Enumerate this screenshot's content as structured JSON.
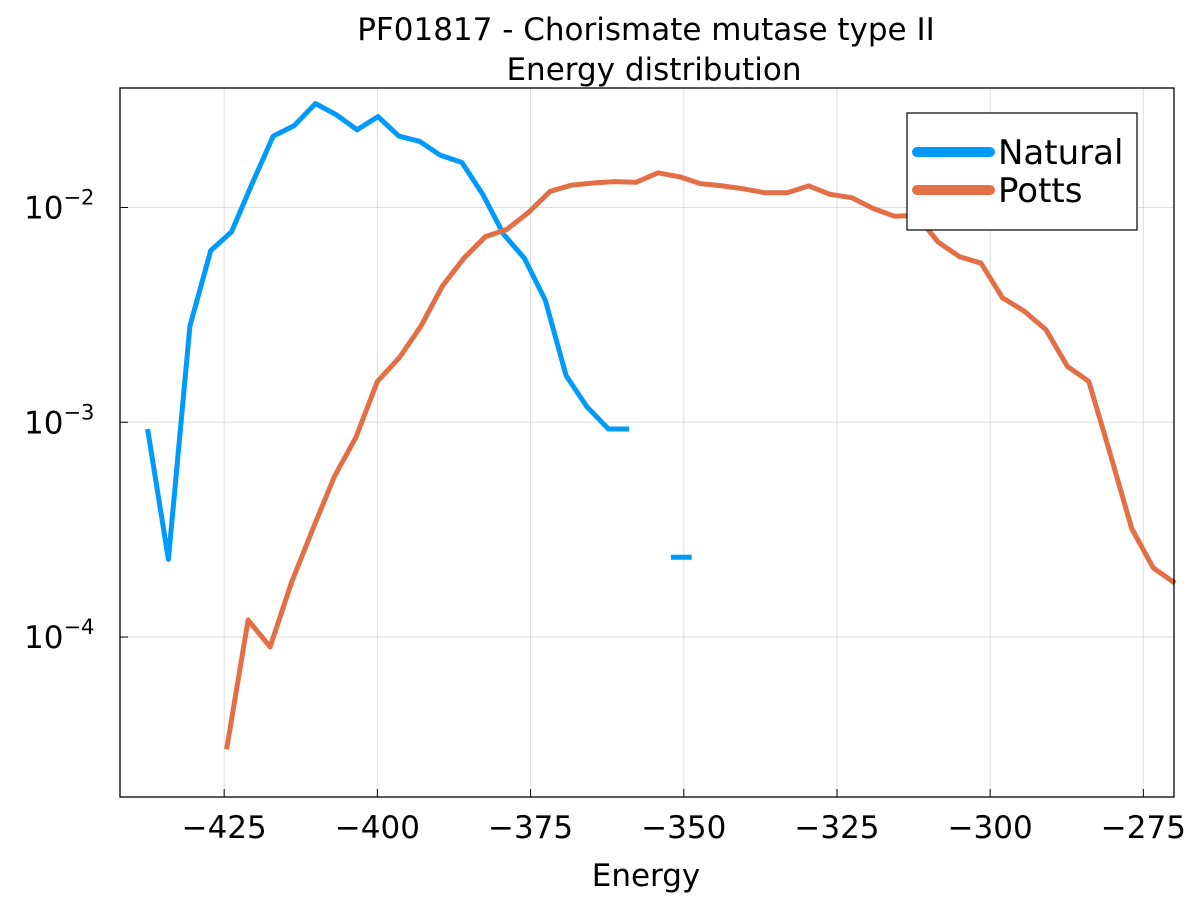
{
  "chart_data": {
    "type": "line",
    "title": [
      "PF01817 - Chorismate mutase type II",
      "Energy distribution"
    ],
    "xlabel": "Energy",
    "ylabel": "",
    "yscale": "log10",
    "xlim": [
      -442,
      -270
    ],
    "ylim": [
      1.8e-05,
      0.036
    ],
    "xticks": [
      -425,
      -400,
      -375,
      -350,
      -325,
      -300,
      -275
    ],
    "xtick_labels": [
      "−425",
      "−400",
      "−375",
      "−350",
      "−325",
      "−300",
      "−275"
    ],
    "yticks": [
      0.0001,
      0.001,
      0.01
    ],
    "ytick_labels": [
      {
        "base": "10",
        "exp": "−4"
      },
      {
        "base": "10",
        "exp": "−3"
      },
      {
        "base": "10",
        "exp": "−2"
      }
    ],
    "grid": true,
    "legend_position": "top-right",
    "series": [
      {
        "name": "Natural",
        "color": "#009AFA",
        "segments": [
          {
            "x": [
              -437.5,
              -434.1,
              -430.6,
              -427.2,
              -423.8,
              -420.4,
              -417.0,
              -413.6,
              -410.1,
              -406.7,
              -403.3,
              -399.9,
              -396.5,
              -393.1,
              -389.7,
              -386.2,
              -382.8,
              -379.4,
              -376.0,
              -372.6,
              -369.2,
              -365.8,
              -362.3,
              -358.9
            ],
            "y": [
              0.00093,
              0.00023,
              0.0028,
              0.0063,
              0.0077,
              0.013,
              0.0215,
              0.024,
              0.0305,
              0.027,
              0.023,
              0.0265,
              0.0215,
              0.0203,
              0.0175,
              0.0162,
              0.0115,
              0.0075,
              0.0058,
              0.0037,
              0.00165,
              0.00118,
              0.00093,
              0.00093
            ]
          },
          {
            "x": [
              -352.1,
              -348.7
            ],
            "y": [
              0.000235,
              0.000235
            ]
          }
        ]
      },
      {
        "name": "Potts",
        "color": "#E26F46",
        "segments": [
          {
            "x": [
              -424.6,
              -421.1,
              -417.5,
              -414.0,
              -410.5,
              -407.0,
              -403.5,
              -400.0,
              -396.4,
              -392.9,
              -389.4,
              -385.9,
              -382.4,
              -378.9,
              -375.3,
              -371.8,
              -368.3,
              -364.8,
              -361.3,
              -357.8,
              -354.2,
              -350.7,
              -347.2,
              -343.7,
              -340.2,
              -336.7,
              -333.1,
              -329.6,
              -326.1,
              -322.6,
              -319.1,
              -315.6,
              -312.0,
              -308.5,
              -305.0,
              -301.5,
              -298.0,
              -294.5,
              -290.9,
              -287.4,
              -283.9,
              -280.4,
              -276.9,
              -273.4,
              -269.8
            ],
            "y": [
              3e-05,
              0.00012,
              9e-05,
              0.00018,
              0.00032,
              0.00056,
              0.00085,
              0.00155,
              0.002,
              0.0028,
              0.0043,
              0.0058,
              0.0073,
              0.0079,
              0.0095,
              0.0119,
              0.0127,
              0.013,
              0.0132,
              0.0131,
              0.0145,
              0.0139,
              0.0129,
              0.0126,
              0.0122,
              0.0117,
              0.0117,
              0.0126,
              0.0115,
              0.0111,
              0.0099,
              0.0091,
              0.0092,
              0.0069,
              0.0059,
              0.0055,
              0.0038,
              0.0033,
              0.0027,
              0.00182,
              0.00155,
              0.00071,
              0.00032,
              0.00021,
              0.000178
            ]
          }
        ]
      }
    ]
  }
}
